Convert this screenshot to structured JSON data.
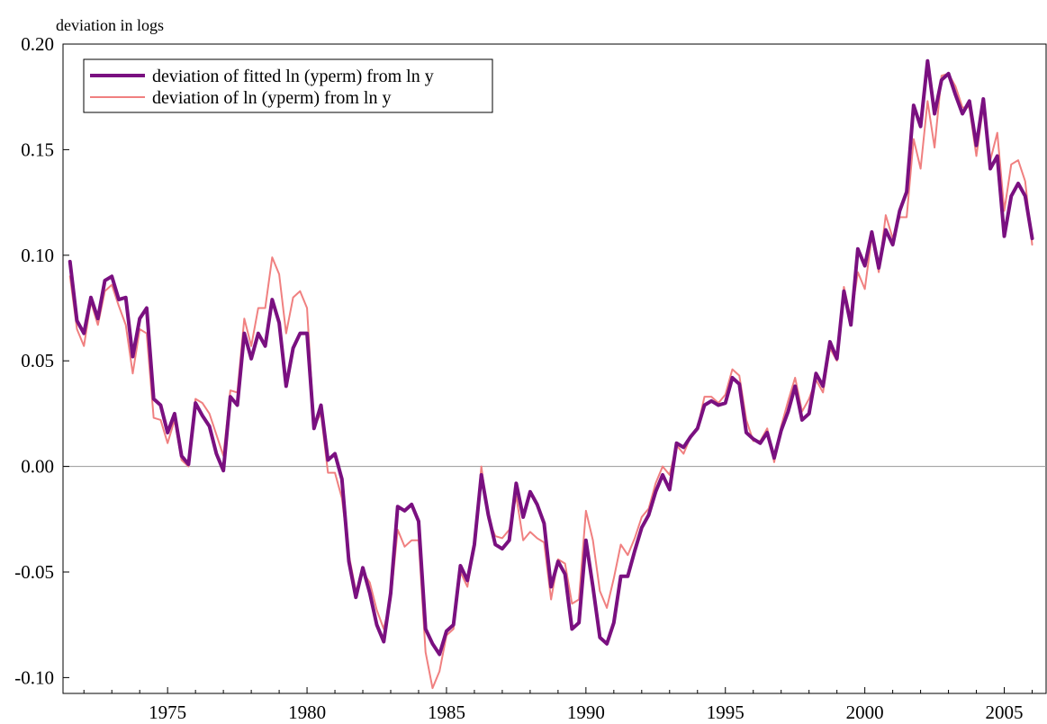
{
  "chart_data": {
    "type": "line",
    "title": "",
    "ylabel": "deviation in logs",
    "xlabel": "",
    "xlim": [
      1971.25,
      2006.5
    ],
    "ylim": [
      -0.1075,
      0.2
    ],
    "x_ticks": [
      1975,
      1980,
      1985,
      1990,
      1995,
      2000,
      2005
    ],
    "x_tick_labels": [
      "1975",
      "1980",
      "1985",
      "1990",
      "1995",
      "2000",
      "2005"
    ],
    "y_ticks": [
      -0.1,
      -0.05,
      0.0,
      0.05,
      0.1,
      0.15,
      0.2
    ],
    "y_tick_labels": [
      "-0.10",
      "-0.05",
      "0.00",
      "0.05",
      "0.10",
      "0.15",
      "0.20"
    ],
    "grid": false,
    "zero_line": true,
    "legend": "top-left",
    "x_start": 1971.5,
    "x_step": 0.25,
    "series": [
      {
        "name": "deviation of fitted ln (yperm) from ln y",
        "color": "#7a1080",
        "values": [
          0.097,
          0.069,
          0.063,
          0.08,
          0.07,
          0.088,
          0.09,
          0.079,
          0.08,
          0.052,
          0.07,
          0.075,
          0.032,
          0.029,
          0.016,
          0.025,
          0.005,
          0.001,
          0.03,
          0.024,
          0.019,
          0.006,
          -0.002,
          0.033,
          0.029,
          0.063,
          0.051,
          0.063,
          0.057,
          0.079,
          0.068,
          0.038,
          0.056,
          0.063,
          0.063,
          0.018,
          0.029,
          0.003,
          0.006,
          -0.006,
          -0.045,
          -0.062,
          -0.048,
          -0.06,
          -0.075,
          -0.083,
          -0.06,
          -0.019,
          -0.021,
          -0.018,
          -0.026,
          -0.077,
          -0.084,
          -0.089,
          -0.078,
          -0.075,
          -0.047,
          -0.054,
          -0.037,
          -0.004,
          -0.023,
          -0.037,
          -0.039,
          -0.035,
          -0.008,
          -0.024,
          -0.012,
          -0.018,
          -0.027,
          -0.057,
          -0.045,
          -0.051,
          -0.077,
          -0.074,
          -0.035,
          -0.057,
          -0.081,
          -0.084,
          -0.074,
          -0.052,
          -0.052,
          -0.04,
          -0.029,
          -0.023,
          -0.012,
          -0.004,
          -0.011,
          0.011,
          0.009,
          0.014,
          0.018,
          0.029,
          0.031,
          0.029,
          0.03,
          0.042,
          0.039,
          0.016,
          0.013,
          0.011,
          0.016,
          0.004,
          0.017,
          0.026,
          0.038,
          0.022,
          0.025,
          0.044,
          0.038,
          0.059,
          0.051,
          0.083,
          0.067,
          0.103,
          0.095,
          0.111,
          0.094,
          0.112,
          0.105,
          0.121,
          0.13,
          0.171,
          0.161,
          0.192,
          0.167,
          0.183,
          0.186,
          0.176,
          0.167,
          0.173,
          0.152,
          0.174,
          0.141,
          0.147,
          0.109,
          0.128,
          0.134,
          0.128,
          0.108
        ]
      },
      {
        "name": "deviation of ln (yperm) from ln y",
        "color": "#f08080",
        "values": [
          0.09,
          0.065,
          0.057,
          0.078,
          0.067,
          0.083,
          0.086,
          0.076,
          0.067,
          0.044,
          0.065,
          0.063,
          0.023,
          0.022,
          0.011,
          0.022,
          0.003,
          0.0,
          0.032,
          0.03,
          0.025,
          0.015,
          0.005,
          0.036,
          0.035,
          0.07,
          0.057,
          0.075,
          0.075,
          0.099,
          0.091,
          0.063,
          0.08,
          0.083,
          0.075,
          0.019,
          0.025,
          -0.003,
          -0.003,
          -0.015,
          -0.042,
          -0.059,
          -0.05,
          -0.055,
          -0.068,
          -0.077,
          -0.063,
          -0.03,
          -0.038,
          -0.035,
          -0.035,
          -0.088,
          -0.105,
          -0.097,
          -0.08,
          -0.077,
          -0.05,
          -0.057,
          -0.037,
          0.0,
          -0.025,
          -0.033,
          -0.034,
          -0.03,
          -0.014,
          -0.035,
          -0.031,
          -0.034,
          -0.036,
          -0.063,
          -0.044,
          -0.046,
          -0.065,
          -0.063,
          -0.021,
          -0.035,
          -0.059,
          -0.067,
          -0.053,
          -0.037,
          -0.042,
          -0.034,
          -0.024,
          -0.02,
          -0.008,
          0.0,
          -0.004,
          0.01,
          0.006,
          0.014,
          0.018,
          0.033,
          0.033,
          0.03,
          0.034,
          0.046,
          0.043,
          0.022,
          0.012,
          0.012,
          0.018,
          0.002,
          0.019,
          0.031,
          0.042,
          0.026,
          0.032,
          0.041,
          0.035,
          0.056,
          0.05,
          0.085,
          0.07,
          0.092,
          0.084,
          0.109,
          0.092,
          0.119,
          0.108,
          0.118,
          0.118,
          0.155,
          0.141,
          0.173,
          0.151,
          0.185,
          0.186,
          0.18,
          0.17,
          0.17,
          0.147,
          0.171,
          0.145,
          0.158,
          0.121,
          0.143,
          0.145,
          0.135,
          0.105
        ]
      }
    ]
  }
}
